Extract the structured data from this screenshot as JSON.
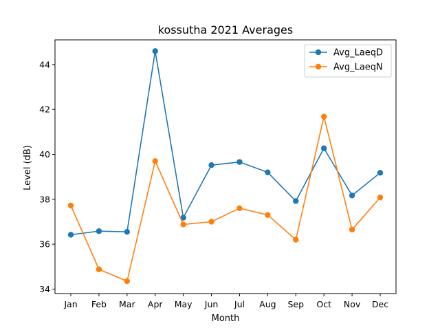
{
  "chart_data": {
    "type": "line",
    "title": "kossutha 2021 Averages",
    "xlabel": "Month",
    "ylabel": "Level (dB)",
    "categories": [
      "Jan",
      "Feb",
      "Mar",
      "Apr",
      "May",
      "Jun",
      "Jul",
      "Aug",
      "Sep",
      "Oct",
      "Nov",
      "Dec"
    ],
    "yticks": [
      34,
      36,
      38,
      40,
      42,
      44
    ],
    "ylim": [
      33.8,
      45.1
    ],
    "grid": false,
    "legend_position": "top-right",
    "series": [
      {
        "name": "Avg_LaeqD",
        "color": "#1f77b4",
        "values": [
          36.42,
          36.58,
          36.55,
          44.6,
          37.18,
          39.52,
          39.66,
          39.2,
          37.92,
          40.27,
          38.17,
          39.18
        ]
      },
      {
        "name": "Avg_LaeqN",
        "color": "#ff7f0e",
        "values": [
          37.72,
          34.88,
          34.35,
          39.7,
          36.88,
          37.0,
          37.6,
          37.3,
          36.2,
          41.68,
          36.65,
          38.08
        ]
      }
    ]
  }
}
